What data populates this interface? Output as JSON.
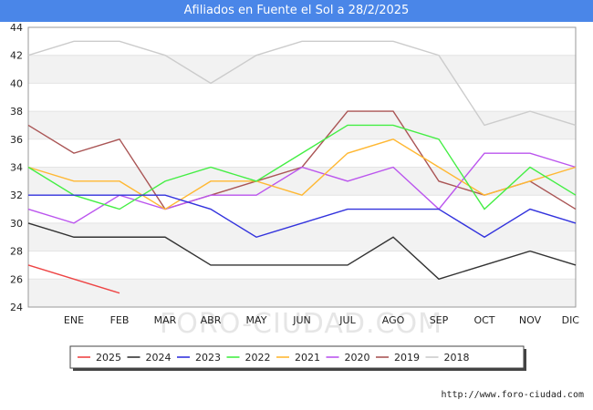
{
  "chart_data": {
    "type": "line",
    "title": "Afiliados en Fuente el Sol a 28/2/2025",
    "xlabel": "",
    "ylabel": "",
    "categories": [
      "",
      "ENE",
      "FEB",
      "MAR",
      "ABR",
      "MAY",
      "JUN",
      "JUL",
      "AGO",
      "SEP",
      "OCT",
      "NOV",
      "DIC"
    ],
    "ylim": [
      24,
      44
    ],
    "yticks": [
      24,
      26,
      28,
      30,
      32,
      34,
      36,
      38,
      40,
      42,
      44
    ],
    "grid": true,
    "legend_position": "bottom",
    "series": [
      {
        "name": "2025",
        "color": "#ee4444",
        "values": [
          27,
          26,
          25,
          null,
          null,
          null,
          null,
          null,
          null,
          null,
          null,
          null,
          null
        ]
      },
      {
        "name": "2024",
        "color": "#333333",
        "values": [
          30,
          29,
          29,
          29,
          27,
          27,
          27,
          27,
          29,
          26,
          27,
          28,
          27
        ]
      },
      {
        "name": "2023",
        "color": "#3333dd",
        "values": [
          32,
          32,
          32,
          32,
          31,
          29,
          30,
          31,
          31,
          31,
          29,
          31,
          30
        ]
      },
      {
        "name": "2022",
        "color": "#44ee44",
        "values": [
          34,
          32,
          31,
          33,
          34,
          33,
          35,
          37,
          37,
          36,
          31,
          34,
          32
        ]
      },
      {
        "name": "2021",
        "color": "#ffb833",
        "values": [
          34,
          33,
          33,
          31,
          33,
          33,
          32,
          35,
          36,
          34,
          32,
          33,
          34
        ]
      },
      {
        "name": "2020",
        "color": "#bb55ee",
        "values": [
          31,
          30,
          32,
          31,
          32,
          32,
          34,
          33,
          34,
          31,
          35,
          35,
          34
        ]
      },
      {
        "name": "2019",
        "color": "#aa5555",
        "values": [
          37,
          35,
          36,
          31,
          32,
          33,
          34,
          38,
          38,
          33,
          32,
          33,
          31
        ]
      },
      {
        "name": "2018",
        "color": "#cccccc",
        "values": [
          42,
          43,
          43,
          42,
          40,
          42,
          43,
          43,
          43,
          42,
          37,
          38,
          37
        ]
      }
    ]
  },
  "footer": {
    "url": "http://www.foro-ciudad.com"
  },
  "watermark": "FORO-CIUDAD.COM"
}
